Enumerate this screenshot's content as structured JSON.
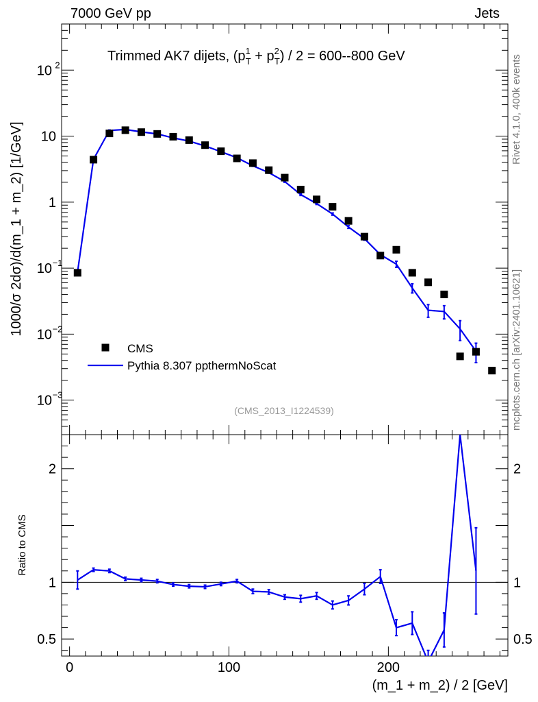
{
  "header": {
    "left": "7000 GeV pp",
    "right": "Jets"
  },
  "side_labels": {
    "rivet": "Rivet 4.1.0,  400k events",
    "mcplots": "mcplots.cern.ch [arXiv:2401.10621]"
  },
  "chart_data": [
    {
      "panel": "main",
      "type": "line",
      "title_prefix": "Trimmed AK7 dijets, (p",
      "title_suffix": ") / 2 = 600--800 GeV",
      "title_mid": " + p",
      "title_sub": "T",
      "title_sup1": "1",
      "title_sup2": "2",
      "ylabel": "1000/σ   2dσ)/d(m_1 + m_2) [1/GeV]",
      "yscale": "log",
      "ylim": [
        0.0003,
        500
      ],
      "xlim": [
        -5,
        275
      ],
      "x_ticks": [
        0,
        100,
        200
      ],
      "y_tick_labels": [
        {
          "value": 100,
          "mantissa": "10",
          "exp": "2"
        },
        {
          "value": 10,
          "mantissa": "10",
          "exp": ""
        },
        {
          "value": 1,
          "mantissa": "1",
          "exp": ""
        },
        {
          "value": 0.1,
          "mantissa": "10",
          "exp": "−1"
        },
        {
          "value": 0.01,
          "mantissa": "10",
          "exp": "−2"
        },
        {
          "value": 0.001,
          "mantissa": "10",
          "exp": "−3"
        }
      ],
      "watermark": "(CMS_2013_I1224539)",
      "legend_position": "bottom-left",
      "series": [
        {
          "name": "CMS",
          "style": "markers",
          "color": "#000000",
          "x": [
            5,
            15,
            25,
            35,
            45,
            55,
            65,
            75,
            85,
            95,
            105,
            115,
            125,
            135,
            145,
            155,
            165,
            175,
            185,
            195,
            205,
            215,
            225,
            235,
            245,
            255,
            265
          ],
          "y": [
            0.085,
            4.4,
            11.0,
            12.3,
            11.5,
            10.8,
            9.8,
            8.7,
            7.3,
            5.9,
            4.6,
            3.9,
            3.05,
            2.35,
            1.55,
            1.1,
            0.85,
            0.52,
            0.3,
            0.155,
            0.19,
            0.085,
            0.061,
            0.04,
            0.0046,
            0.0054,
            0.0028
          ]
        },
        {
          "name": "Pythia 8.307 ppthermNoScat",
          "style": "line",
          "color": "#0000ee",
          "x": [
            5,
            15,
            25,
            35,
            45,
            55,
            65,
            75,
            85,
            95,
            105,
            115,
            125,
            135,
            145,
            155,
            165,
            175,
            185,
            195,
            205,
            215,
            225,
            235,
            245,
            255
          ],
          "y": [
            0.087,
            4.45,
            12.2,
            12.6,
            11.6,
            10.8,
            9.4,
            8.4,
            7.1,
            5.8,
            4.7,
            3.55,
            2.8,
            2.05,
            1.3,
            0.95,
            0.66,
            0.42,
            0.28,
            0.16,
            0.115,
            0.05,
            0.023,
            0.022,
            0.012,
            0.0055
          ],
          "yerr": [
            0.005,
            0.1,
            0.2,
            0.2,
            0.2,
            0.2,
            0.15,
            0.15,
            0.12,
            0.1,
            0.08,
            0.07,
            0.06,
            0.05,
            0.04,
            0.03,
            0.025,
            0.02,
            0.015,
            0.012,
            0.012,
            0.008,
            0.005,
            0.005,
            0.004,
            0.0018
          ]
        }
      ]
    },
    {
      "panel": "ratio",
      "type": "line",
      "ylabel": "Ratio to CMS",
      "xlabel": "(m_1 + m_2) / 2 [GeV]",
      "ylim": [
        0.35,
        2.3
      ],
      "xlim": [
        -5,
        275
      ],
      "y_ticks": [
        0.5,
        1,
        2
      ],
      "y_tick_labels": [
        "0.5",
        "1",
        "2"
      ],
      "reference_line": 1,
      "series": [
        {
          "name": "Pythia 8.307 ppthermNoScat / CMS",
          "color": "#0000ee",
          "x": [
            5,
            15,
            25,
            35,
            45,
            55,
            65,
            75,
            85,
            95,
            105,
            115,
            125,
            135,
            145,
            155,
            165,
            175,
            185,
            195,
            205,
            215,
            225,
            235,
            245,
            255
          ],
          "y": [
            1.02,
            1.11,
            1.1,
            1.03,
            1.02,
            1.01,
            0.98,
            0.965,
            0.96,
            0.985,
            1.01,
            0.92,
            0.915,
            0.87,
            0.855,
            0.88,
            0.8,
            0.84,
            0.94,
            1.05,
            0.6,
            0.64,
            0.3,
            0.58,
            2.3,
            1.1
          ],
          "yerr": [
            0.08,
            0.015,
            0.015,
            0.015,
            0.015,
            0.015,
            0.015,
            0.015,
            0.015,
            0.015,
            0.015,
            0.02,
            0.02,
            0.02,
            0.03,
            0.03,
            0.035,
            0.04,
            0.05,
            0.06,
            0.07,
            0.1,
            0.1,
            0.15,
            0.0,
            0.38
          ]
        }
      ]
    }
  ],
  "colors": {
    "cms": "#000000",
    "pythia": "#0000ee",
    "watermark": "#999999",
    "side_text": "#777777"
  }
}
